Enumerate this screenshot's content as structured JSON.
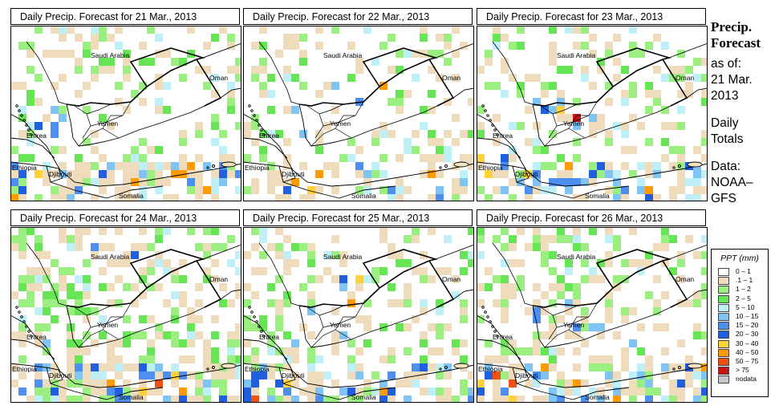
{
  "panels": [
    {
      "title": "Daily Precip. Forecast for  21 Mar., 2013",
      "seed": 11,
      "wet": 0.55,
      "hot": [
        [
          0.05,
          0.9,
          3
        ],
        [
          0.2,
          0.55,
          2
        ],
        [
          0.35,
          0.35,
          1
        ]
      ]
    },
    {
      "title": "Daily Precip. Forecast for  22 Mar., 2013",
      "seed": 23,
      "wet": 0.45,
      "hot": [
        [
          0.2,
          0.9,
          3
        ],
        [
          0.3,
          0.55,
          2
        ],
        [
          0.5,
          0.4,
          1
        ]
      ]
    },
    {
      "title": "Daily Precip. Forecast for  23 Mar., 2013",
      "seed": 37,
      "wet": 0.6,
      "hot": [
        [
          0.1,
          0.85,
          3
        ],
        [
          0.3,
          0.5,
          2
        ],
        [
          0.5,
          0.4,
          2
        ]
      ]
    },
    {
      "title": "Daily Precip. Forecast for  24 Mar., 2013",
      "seed": 41,
      "wet": 0.75,
      "hot": [
        [
          0.6,
          0.9,
          4
        ],
        [
          0.45,
          0.15,
          2
        ],
        [
          0.05,
          0.75,
          2
        ]
      ]
    },
    {
      "title": "Daily Precip. Forecast for  25 Mar., 2013",
      "seed": 53,
      "wet": 0.6,
      "hot": [
        [
          0.1,
          0.9,
          3
        ],
        [
          0.3,
          0.55,
          2
        ],
        [
          0.4,
          0.3,
          1
        ]
      ]
    },
    {
      "title": "Daily Precip. Forecast for  26 Mar., 2013",
      "seed": 67,
      "wet": 0.7,
      "hot": [
        [
          0.55,
          0.55,
          3
        ],
        [
          0.35,
          0.45,
          2
        ],
        [
          0.1,
          0.9,
          3
        ]
      ]
    }
  ],
  "country_labels": [
    "Saudi Arabia",
    "Oman",
    "Yemen",
    "Eritrea",
    "Ethiopia",
    "Djibouti",
    "Somalia"
  ],
  "side": {
    "title_line1": "Precip.",
    "title_line2": "Forecast",
    "asof_line1": "as of:",
    "asof_line2": "21 Mar.",
    "asof_line3": "2013",
    "daily_line1": "Daily",
    "daily_line2": "Totals",
    "data_line1": "Data:",
    "data_line2": "NOAA–",
    "data_line3": "GFS"
  },
  "legend": {
    "title": "PPT (mm)",
    "items": [
      {
        "label": "0 – 1",
        "color": "#ffffff"
      },
      {
        "label": ".1 – 1",
        "color": "#efdcbd"
      },
      {
        "label": "1 – 2",
        "color": "#9bee80"
      },
      {
        "label": "2 – 5",
        "color": "#66e655"
      },
      {
        "label": "5 – 10",
        "color": "#bff0f7"
      },
      {
        "label": "10 – 15",
        "color": "#7fc4f5"
      },
      {
        "label": "15 – 20",
        "color": "#4d8fee"
      },
      {
        "label": "20 – 30",
        "color": "#1f5fe0"
      },
      {
        "label": "30 – 40",
        "color": "#ffd23c"
      },
      {
        "label": "40 – 50",
        "color": "#ff9a00"
      },
      {
        "label": "50 – 75",
        "color": "#f05010"
      },
      {
        "label": "> 75",
        "color": "#c81414"
      },
      {
        "label": "nodata",
        "color": "#c8c8c8"
      }
    ]
  }
}
